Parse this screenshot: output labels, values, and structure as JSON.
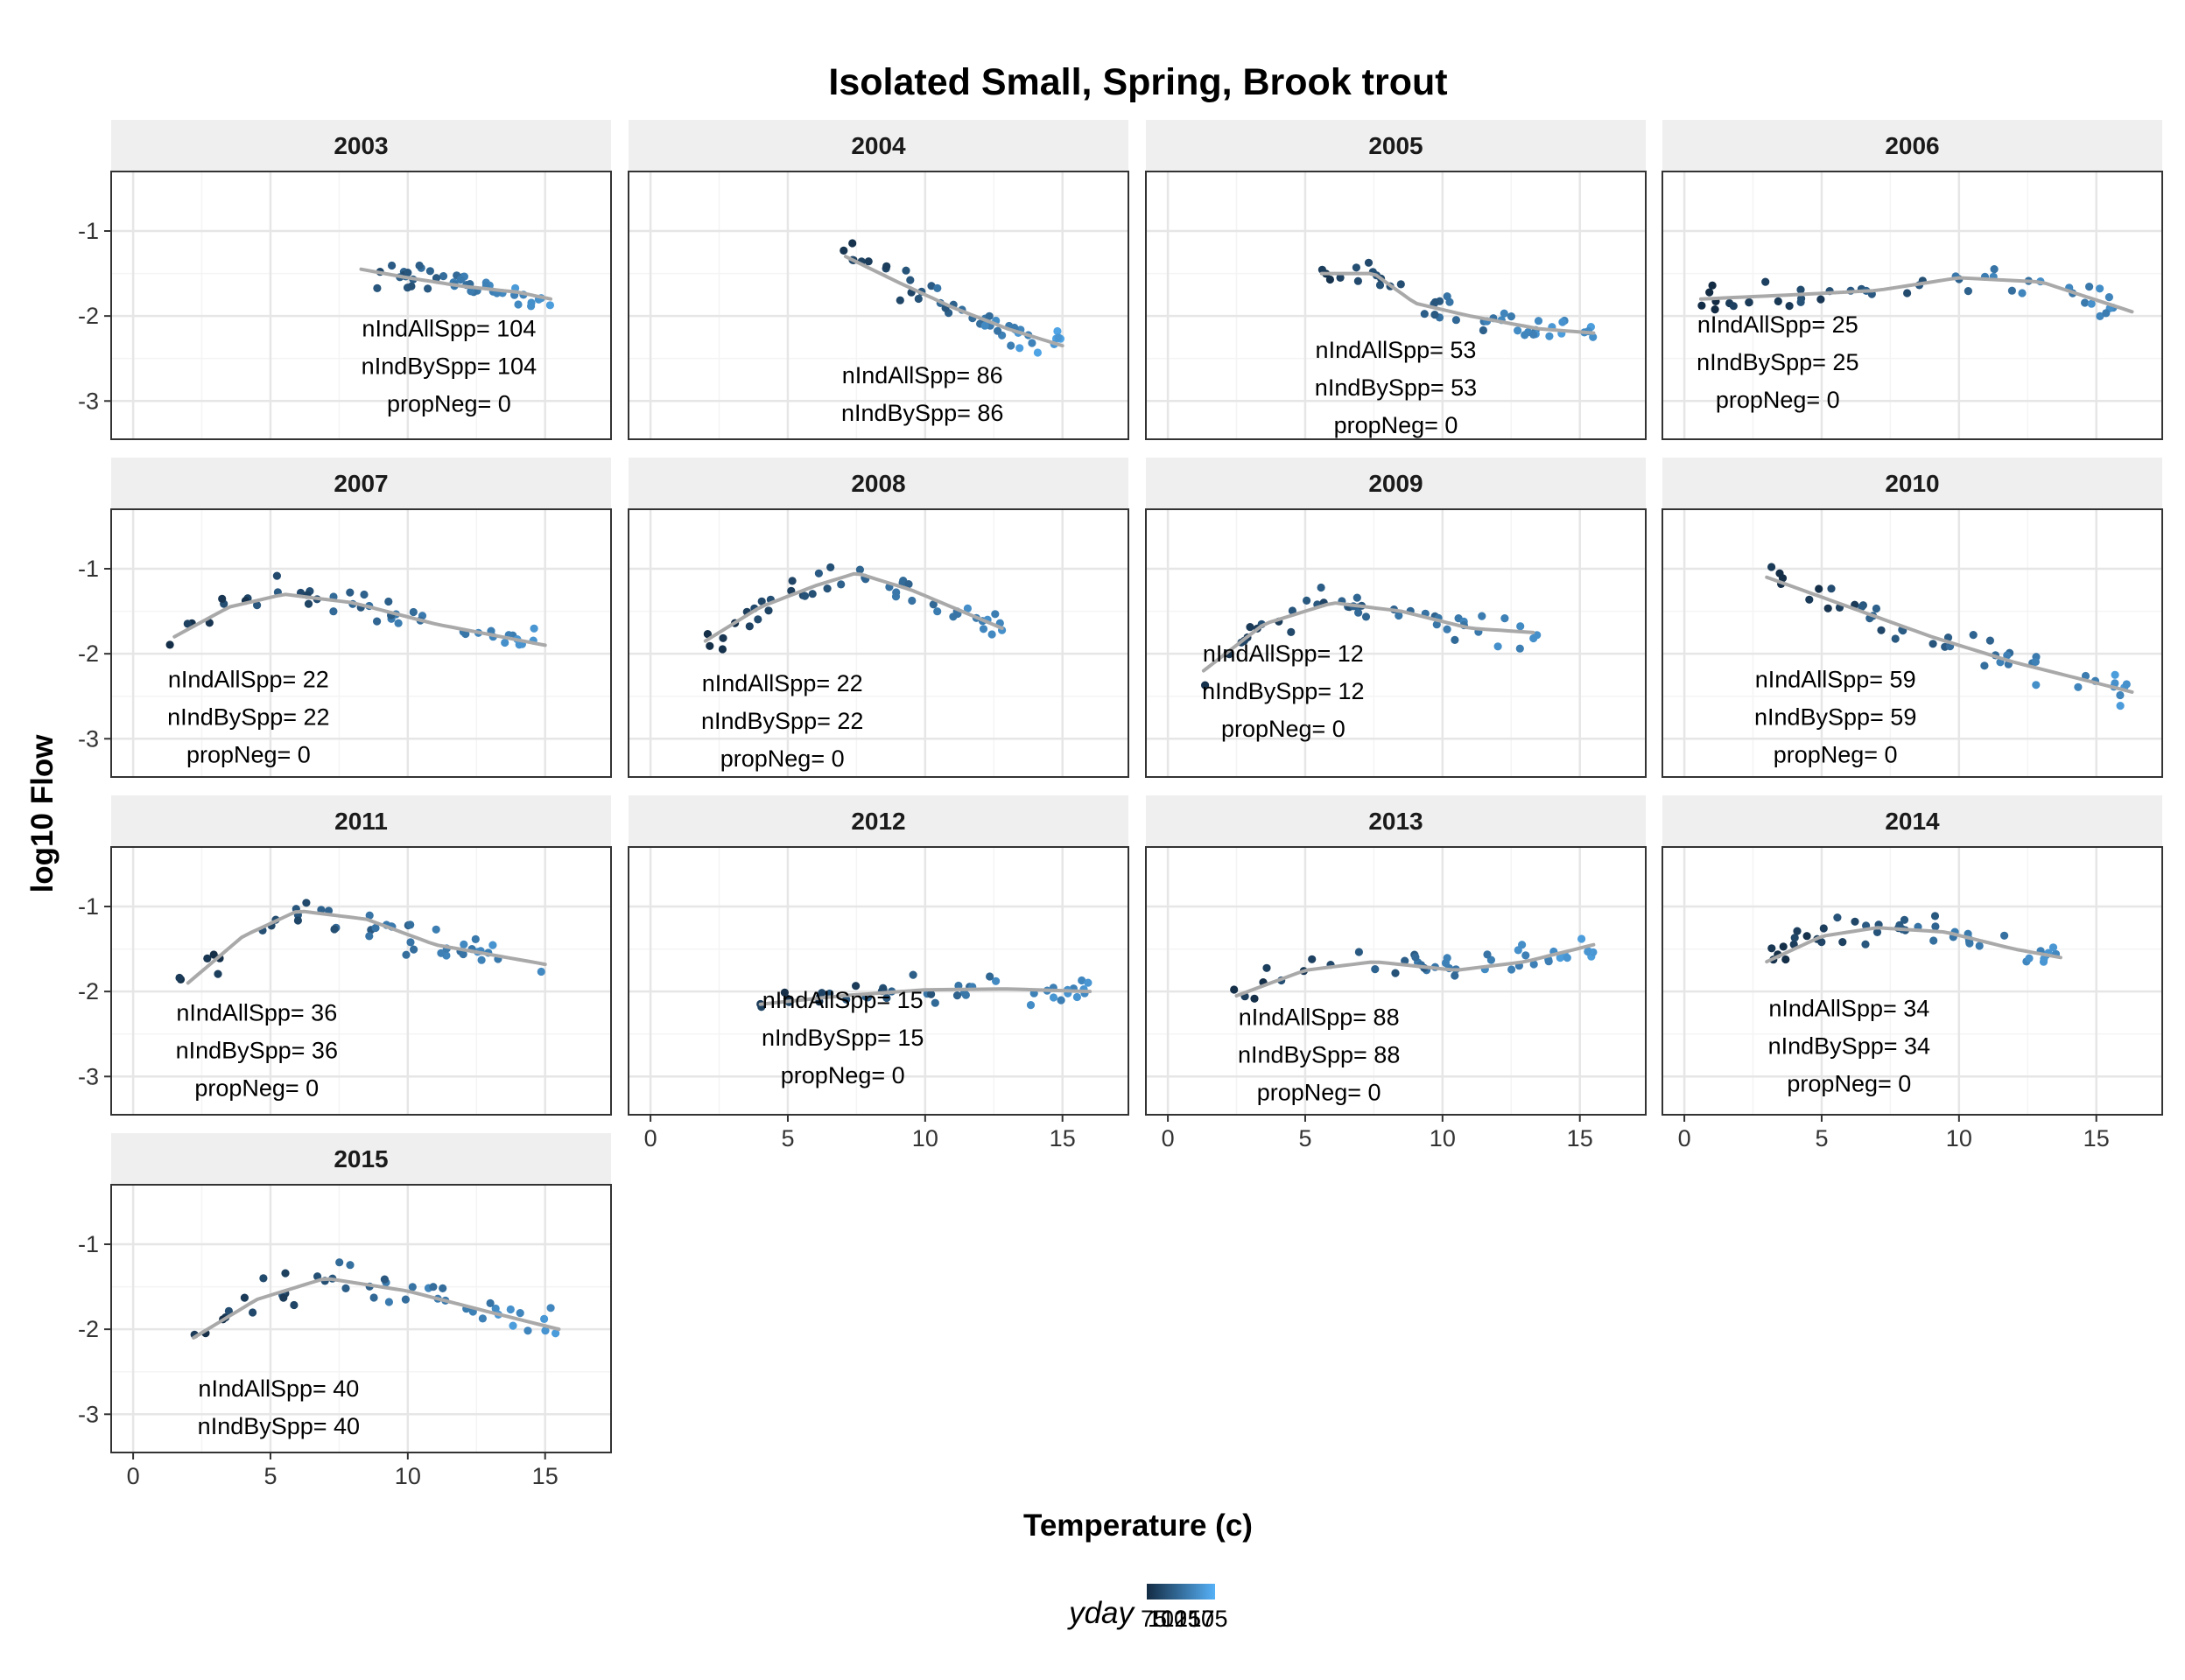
{
  "chart_data": {
    "type": "scatter",
    "title": "Isolated Small, Spring, Brook trout",
    "xlabel": "Temperature (c)",
    "ylabel": "log10 Flow",
    "xlim": [
      -0.8,
      17.4
    ],
    "ylim": [
      -3.45,
      -0.3
    ],
    "x_ticks": [
      0,
      5,
      10,
      15
    ],
    "y_ticks": [
      -1,
      -2,
      -3
    ],
    "grid": true,
    "legend": {
      "title": "yday",
      "position": "bottom",
      "labels": [
        "75",
        "100",
        "125",
        "150",
        "175"
      ],
      "low_color": "#132B43",
      "high_color": "#56B1F7"
    },
    "smooth_color": "#a9a9a9",
    "panels": [
      {
        "year": "2003",
        "annot": [
          "nIndAllSpp= 104",
          "nIndBySpp= 104",
          "propNeg= 0"
        ],
        "annot_pos": [
          11.5,
          -2.15
        ],
        "xr": [
          8.2,
          15.3
        ],
        "yc": -1.65,
        "spread": 0.14,
        "yday": [
          95,
          160
        ],
        "smooth": [
          [
            8.3,
            -1.45
          ],
          [
            10,
            -1.55
          ],
          [
            12,
            -1.65
          ],
          [
            14,
            -1.72
          ],
          [
            15.2,
            -1.8
          ]
        ]
      },
      {
        "year": "2004",
        "annot": [
          "nIndAllSpp= 86",
          "nIndBySpp= 86",
          "propNeg= 0"
        ],
        "annot_pos": [
          9.9,
          -2.7
        ],
        "xr": [
          7,
          15
        ],
        "yc": -1.8,
        "spread": 0.15,
        "yday": [
          80,
          165
        ],
        "smooth": [
          [
            7.1,
            -1.3
          ],
          [
            9,
            -1.6
          ],
          [
            11,
            -1.9
          ],
          [
            13,
            -2.15
          ],
          [
            15,
            -2.35
          ]
        ]
      },
      {
        "year": "2005",
        "annot": [
          "nIndAllSpp= 53",
          "nIndBySpp= 53",
          "propNeg= 0"
        ],
        "annot_pos": [
          8.3,
          -2.4
        ],
        "xr": [
          5.5,
          15.5
        ],
        "yc": -1.8,
        "spread": 0.15,
        "yday": [
          80,
          160
        ],
        "smooth": [
          [
            5.6,
            -1.5
          ],
          [
            7.5,
            -1.5
          ],
          [
            9,
            -1.85
          ],
          [
            11,
            -2.0
          ],
          [
            13.5,
            -2.15
          ],
          [
            15.5,
            -2.2
          ]
        ]
      },
      {
        "year": "2006",
        "annot": [
          "nIndAllSpp= 25",
          "nIndBySpp= 25",
          "propNeg= 0"
        ],
        "annot_pos": [
          3.4,
          -2.1
        ],
        "xr": [
          0.6,
          16.5
        ],
        "yc": -1.72,
        "spread": 0.13,
        "yday": [
          75,
          155
        ],
        "smooth": [
          [
            0.6,
            -1.8
          ],
          [
            4,
            -1.75
          ],
          [
            7,
            -1.7
          ],
          [
            10,
            -1.55
          ],
          [
            13,
            -1.6
          ],
          [
            16.3,
            -1.95
          ]
        ]
      },
      {
        "year": "2007",
        "annot": [
          "nIndAllSpp= 22",
          "nIndBySpp= 22",
          "propNeg= 0"
        ],
        "annot_pos": [
          4.2,
          -2.3
        ],
        "xr": [
          1.3,
          15
        ],
        "yc": -1.6,
        "spread": 0.15,
        "yday": [
          78,
          155
        ],
        "smooth": [
          [
            1.5,
            -1.8
          ],
          [
            3.5,
            -1.45
          ],
          [
            5.5,
            -1.3
          ],
          [
            8,
            -1.4
          ],
          [
            11,
            -1.65
          ],
          [
            15,
            -1.9
          ]
        ]
      },
      {
        "year": "2008",
        "annot": [
          "nIndAllSpp= 22",
          "nIndBySpp= 22",
          "propNeg= 0"
        ],
        "annot_pos": [
          4.8,
          -2.35
        ],
        "xr": [
          2,
          13
        ],
        "yc": -1.4,
        "spread": 0.15,
        "yday": [
          78,
          150
        ],
        "smooth": [
          [
            2,
            -1.85
          ],
          [
            4,
            -1.45
          ],
          [
            6,
            -1.2
          ],
          [
            7.5,
            -1.05
          ],
          [
            9.5,
            -1.25
          ],
          [
            12.8,
            -1.7
          ]
        ]
      },
      {
        "year": "2009",
        "annot": [
          "nIndAllSpp= 12",
          "nIndBySpp= 12",
          "propNeg= 0"
        ],
        "annot_pos": [
          4.2,
          -2.0
        ],
        "xr": [
          1.3,
          13.5
        ],
        "yc": -1.55,
        "spread": 0.15,
        "yday": [
          80,
          150
        ],
        "smooth": [
          [
            1.3,
            -2.2
          ],
          [
            3.5,
            -1.65
          ],
          [
            6,
            -1.4
          ],
          [
            8.5,
            -1.5
          ],
          [
            11,
            -1.7
          ],
          [
            13.3,
            -1.75
          ]
        ]
      },
      {
        "year": "2010",
        "annot": [
          "nIndAllSpp= 59",
          "nIndBySpp= 59",
          "propNeg= 0"
        ],
        "annot_pos": [
          5.5,
          -2.3
        ],
        "xr": [
          3,
          16.5
        ],
        "yc": -1.8,
        "spread": 0.16,
        "yday": [
          78,
          160
        ],
        "smooth": [
          [
            3,
            -1.1
          ],
          [
            6,
            -1.45
          ],
          [
            9,
            -1.8
          ],
          [
            12,
            -2.1
          ],
          [
            16.3,
            -2.45
          ]
        ]
      },
      {
        "year": "2011",
        "annot": [
          "nIndAllSpp= 36",
          "nIndBySpp= 36",
          "propNeg= 0"
        ],
        "annot_pos": [
          4.5,
          -2.25
        ],
        "xr": [
          1.5,
          15
        ],
        "yc": -1.35,
        "spread": 0.17,
        "yday": [
          78,
          155
        ],
        "smooth": [
          [
            2,
            -1.9
          ],
          [
            4,
            -1.35
          ],
          [
            6,
            -1.05
          ],
          [
            8.5,
            -1.15
          ],
          [
            11,
            -1.45
          ],
          [
            15,
            -1.68
          ]
        ]
      },
      {
        "year": "2012",
        "annot": [
          "nIndAllSpp= 15",
          "nIndBySpp= 15",
          "propNeg= 0"
        ],
        "annot_pos": [
          7,
          -2.1
        ],
        "xr": [
          4,
          16
        ],
        "yc": -2.05,
        "spread": 0.12,
        "yday": [
          78,
          155
        ],
        "smooth": [
          [
            4,
            -2.15
          ],
          [
            7,
            -2.05
          ],
          [
            10,
            -1.98
          ],
          [
            13,
            -1.97
          ],
          [
            16,
            -2.0
          ]
        ]
      },
      {
        "year": "2013",
        "annot": [
          "nIndAllSpp= 88",
          "nIndBySpp= 88",
          "propNeg= 0"
        ],
        "annot_pos": [
          5.5,
          -2.3
        ],
        "xr": [
          2.3,
          15.7
        ],
        "yc": -1.75,
        "spread": 0.15,
        "yday": [
          78,
          160
        ],
        "smooth": [
          [
            2.5,
            -2.05
          ],
          [
            5,
            -1.75
          ],
          [
            7.5,
            -1.65
          ],
          [
            10.5,
            -1.75
          ],
          [
            13,
            -1.65
          ],
          [
            15.5,
            -1.45
          ]
        ]
      },
      {
        "year": "2014",
        "annot": [
          "nIndAllSpp= 34",
          "nIndBySpp= 34",
          "propNeg= 0"
        ],
        "annot_pos": [
          6,
          -2.2
        ],
        "xr": [
          3,
          14
        ],
        "yc": -1.45,
        "spread": 0.15,
        "yday": [
          78,
          155
        ],
        "smooth": [
          [
            3,
            -1.65
          ],
          [
            5,
            -1.35
          ],
          [
            7,
            -1.25
          ],
          [
            9.5,
            -1.3
          ],
          [
            12,
            -1.5
          ],
          [
            13.7,
            -1.6
          ]
        ]
      },
      {
        "year": "2015",
        "annot": [
          "nIndAllSpp= 40",
          "nIndBySpp= 40",
          "propNeg= 0"
        ],
        "annot_pos": [
          5.3,
          -2.7
        ],
        "xr": [
          2,
          15.8
        ],
        "yc": -1.75,
        "spread": 0.17,
        "yday": [
          78,
          160
        ],
        "smooth": [
          [
            2.2,
            -2.1
          ],
          [
            4.5,
            -1.65
          ],
          [
            7,
            -1.4
          ],
          [
            10,
            -1.55
          ],
          [
            13,
            -1.8
          ],
          [
            15.5,
            -2.0
          ]
        ]
      }
    ]
  }
}
